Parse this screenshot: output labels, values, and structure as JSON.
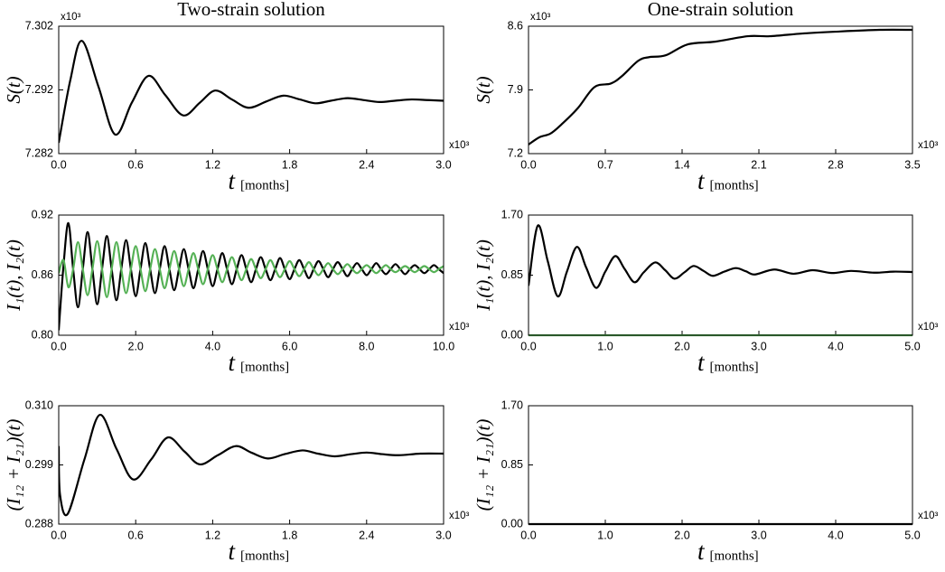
{
  "chart_data": [
    {
      "type": "line",
      "title": "Two-strain solution",
      "ylabel": "S(t)",
      "xlabel": "t",
      "xlabel_unit": "[months]",
      "y_multiplier": "x10³",
      "x_multiplier": "x10³",
      "x": [
        0,
        0.09,
        0.18,
        0.31,
        0.44,
        0.57,
        0.7,
        0.83,
        0.97,
        1.1,
        1.22,
        1.35,
        1.48,
        1.62,
        1.75,
        1.88,
        2.0,
        2.12,
        2.25,
        2.38,
        2.5,
        2.62,
        2.75,
        2.88,
        3.0
      ],
      "series": [
        {
          "color": "#000000",
          "values": [
            7.2837,
            7.2935,
            7.2997,
            7.2925,
            7.285,
            7.29,
            7.2942,
            7.2912,
            7.288,
            7.29,
            7.2919,
            7.2905,
            7.2892,
            7.2902,
            7.2911,
            7.2905,
            7.2899,
            7.2903,
            7.2907,
            7.2904,
            7.2901,
            7.2903,
            7.2905,
            7.2904,
            7.2903
          ]
        }
      ],
      "xlim": [
        0,
        3
      ],
      "xticks": [
        {
          "value": 0,
          "label": "0.0"
        },
        0.6,
        1.2,
        1.8,
        2.4,
        {
          "value": 3,
          "label": "3.0"
        }
      ],
      "ylim": [
        7.282,
        7.302
      ],
      "yticks": [
        7.282,
        7.292,
        7.302
      ]
    },
    {
      "type": "line",
      "title": "One-strain solution",
      "ylabel": "S(t)",
      "xlabel": "t",
      "xlabel_unit": "[months]",
      "y_multiplier": "x10³",
      "x_multiplier": "x10³",
      "x": [
        0,
        0.1,
        0.2,
        0.3,
        0.45,
        0.6,
        0.75,
        0.85,
        1.0,
        1.1,
        1.25,
        1.45,
        1.7,
        2.0,
        2.2,
        2.5,
        2.8,
        3.2,
        3.5
      ],
      "series": [
        {
          "color": "#000000",
          "values": [
            7.3,
            7.38,
            7.42,
            7.52,
            7.7,
            7.93,
            7.97,
            8.05,
            8.22,
            8.26,
            8.28,
            8.4,
            8.43,
            8.49,
            8.49,
            8.52,
            8.54,
            8.56,
            8.56
          ]
        }
      ],
      "xlim": [
        0,
        3.5
      ],
      "xticks": [
        {
          "value": 0,
          "label": "0.0"
        },
        0.7,
        1.4,
        2.1,
        2.8,
        3.5
      ],
      "ylim": [
        7.2,
        8.6
      ],
      "yticks": [
        7.2,
        7.9,
        8.6
      ]
    },
    {
      "type": "line",
      "ylabel": "I₁(t), I₂(t)",
      "xlabel": "t",
      "xlabel_unit": "[months]",
      "x_multiplier": "x10³",
      "x": [
        0,
        0.125,
        0.25,
        0.375,
        0.5,
        0.625,
        0.75,
        0.875,
        1.0,
        1.125,
        1.25,
        1.375,
        1.5,
        1.625,
        1.75,
        1.875,
        2.0,
        2.125,
        2.25,
        2.375,
        2.5,
        2.625,
        2.75,
        2.875,
        3.0,
        3.125,
        3.25,
        3.375,
        3.5,
        3.625,
        3.75,
        3.875,
        4.0,
        4.125,
        4.25,
        4.375,
        4.5,
        4.625,
        4.75,
        4.875,
        5.0,
        5.125,
        5.25,
        5.375,
        5.5,
        5.625,
        5.75,
        5.875,
        6.0,
        6.125,
        6.25,
        6.375,
        6.5,
        6.625,
        6.75,
        6.875,
        7.0,
        7.125,
        7.25,
        7.375,
        7.5,
        7.625,
        7.75,
        7.875,
        8.0,
        8.125,
        8.25,
        8.375,
        8.5,
        8.625,
        8.75,
        8.875,
        9.0,
        9.125,
        9.25,
        9.375,
        9.5,
        9.625,
        9.75,
        9.875,
        10.0
      ],
      "series": [
        {
          "color": "#000000",
          "values": [
            0.805,
            0.87,
            0.912,
            0.866,
            0.828,
            0.866,
            0.903,
            0.866,
            0.831,
            0.866,
            0.899,
            0.866,
            0.835,
            0.866,
            0.895,
            0.866,
            0.839,
            0.866,
            0.892,
            0.866,
            0.842,
            0.866,
            0.889,
            0.866,
            0.845,
            0.866,
            0.886,
            0.866,
            0.847,
            0.866,
            0.884,
            0.866,
            0.849,
            0.866,
            0.882,
            0.866,
            0.851,
            0.866,
            0.88,
            0.866,
            0.853,
            0.866,
            0.878,
            0.866,
            0.855,
            0.866,
            0.877,
            0.866,
            0.856,
            0.866,
            0.875,
            0.866,
            0.857,
            0.866,
            0.874,
            0.866,
            0.858,
            0.866,
            0.873,
            0.866,
            0.859,
            0.866,
            0.872,
            0.866,
            0.86,
            0.866,
            0.872,
            0.866,
            0.861,
            0.866,
            0.871,
            0.866,
            0.861,
            0.866,
            0.87,
            0.866,
            0.862,
            0.866,
            0.87,
            0.866,
            0.862
          ]
        },
        {
          "color": "#55b155",
          "values": [
            0.862,
            0.875,
            0.848,
            0.866,
            0.893,
            0.866,
            0.84,
            0.866,
            0.894,
            0.866,
            0.838,
            0.866,
            0.893,
            0.866,
            0.842,
            0.866,
            0.889,
            0.866,
            0.844,
            0.866,
            0.886,
            0.866,
            0.847,
            0.866,
            0.884,
            0.866,
            0.849,
            0.866,
            0.882,
            0.866,
            0.851,
            0.866,
            0.88,
            0.866,
            0.853,
            0.866,
            0.878,
            0.866,
            0.855,
            0.866,
            0.876,
            0.866,
            0.857,
            0.866,
            0.875,
            0.866,
            0.858,
            0.866,
            0.874,
            0.866,
            0.859,
            0.866,
            0.873,
            0.866,
            0.86,
            0.866,
            0.872,
            0.866,
            0.861,
            0.866,
            0.871,
            0.866,
            0.862,
            0.866,
            0.87,
            0.866,
            0.862,
            0.866,
            0.87,
            0.866,
            0.863,
            0.866,
            0.869,
            0.866,
            0.863,
            0.866,
            0.869,
            0.866,
            0.863,
            0.866,
            0.869
          ]
        }
      ],
      "xlim": [
        0,
        10
      ],
      "xticks": [
        {
          "value": 0,
          "label": "0.0"
        },
        {
          "value": 2,
          "label": "2.0"
        },
        {
          "value": 4,
          "label": "4.0"
        },
        {
          "value": 6,
          "label": "6.0"
        },
        {
          "value": 8,
          "label": "8.0"
        },
        {
          "value": 10,
          "label": "10.0"
        }
      ],
      "ylim": [
        0.8,
        0.92
      ],
      "yticks": [
        {
          "value": 0.8,
          "label": "0.80"
        },
        0.86,
        0.92
      ]
    },
    {
      "type": "line",
      "ylabel": "I₁(t), I₂(t)",
      "xlabel": "t",
      "xlabel_unit": "[months]",
      "x_multiplier": "x10³",
      "x": [
        0,
        0.12,
        0.25,
        0.38,
        0.5,
        0.63,
        0.75,
        0.88,
        1.0,
        1.13,
        1.25,
        1.38,
        1.5,
        1.65,
        1.78,
        1.9,
        2.03,
        2.15,
        2.28,
        2.4,
        2.55,
        2.7,
        2.83,
        2.95,
        3.2,
        3.45,
        3.7,
        3.95,
        4.2,
        4.5,
        4.75,
        5.0
      ],
      "series": [
        {
          "color": "#000000",
          "values": [
            0.7,
            1.55,
            1.05,
            0.55,
            0.9,
            1.25,
            0.96,
            0.67,
            0.9,
            1.12,
            0.94,
            0.75,
            0.89,
            1.03,
            0.92,
            0.8,
            0.89,
            0.98,
            0.91,
            0.84,
            0.9,
            0.95,
            0.905,
            0.86,
            0.93,
            0.87,
            0.92,
            0.88,
            0.91,
            0.885,
            0.9,
            0.895
          ]
        },
        {
          "color": "#55b155",
          "values": [
            0,
            0,
            0,
            0,
            0,
            0,
            0,
            0,
            0,
            0,
            0,
            0,
            0,
            0,
            0,
            0,
            0,
            0,
            0,
            0,
            0,
            0,
            0,
            0,
            0,
            0,
            0,
            0,
            0,
            0,
            0,
            0
          ]
        }
      ],
      "xlim": [
        0,
        5
      ],
      "xticks": [
        {
          "value": 0,
          "label": "0.0"
        },
        {
          "value": 1,
          "label": "1.0"
        },
        {
          "value": 2,
          "label": "2.0"
        },
        {
          "value": 3,
          "label": "3.0"
        },
        {
          "value": 4,
          "label": "4.0"
        },
        {
          "value": 5,
          "label": "5.0"
        }
      ],
      "ylim": [
        0,
        1.7
      ],
      "yticks": [
        {
          "value": 0,
          "label": "0.00"
        },
        0.85,
        {
          "value": 1.7,
          "label": "1.70"
        }
      ]
    },
    {
      "type": "line",
      "ylabel": "(I₁₂ + I₂₁)(t)",
      "xlabel": "t",
      "xlabel_unit": "[months]",
      "x_multiplier": "x10³",
      "x": [
        0,
        0.01,
        0.07,
        0.2,
        0.32,
        0.45,
        0.58,
        0.72,
        0.85,
        0.98,
        1.1,
        1.24,
        1.38,
        1.5,
        1.63,
        1.76,
        1.9,
        2.02,
        2.15,
        2.28,
        2.4,
        2.52,
        2.65,
        2.82,
        3.0
      ],
      "series": [
        {
          "color": "#000000",
          "values": [
            0.3025,
            0.2935,
            0.2899,
            0.3,
            0.3083,
            0.302,
            0.2963,
            0.3,
            0.3041,
            0.3015,
            0.2991,
            0.3008,
            0.3025,
            0.3013,
            0.3002,
            0.301,
            0.3017,
            0.3011,
            0.3006,
            0.301,
            0.3013,
            0.301,
            0.3008,
            0.3011,
            0.3011
          ]
        }
      ],
      "xlim": [
        0,
        3
      ],
      "xticks": [
        {
          "value": 0,
          "label": "0.0"
        },
        0.6,
        1.2,
        1.8,
        2.4,
        {
          "value": 3,
          "label": "3.0"
        }
      ],
      "ylim": [
        0.288,
        0.31
      ],
      "yticks": [
        0.288,
        0.299,
        {
          "value": 0.31,
          "label": "0.310"
        }
      ]
    },
    {
      "type": "line",
      "ylabel": "(I₁₂ + I₂₁)(t)",
      "xlabel": "t",
      "xlabel_unit": "[months]",
      "x_multiplier": "x10³",
      "x": [
        0,
        5
      ],
      "series": [
        {
          "color": "#000000",
          "values": [
            0,
            0
          ]
        }
      ],
      "xlim": [
        0,
        5
      ],
      "xticks": [
        {
          "value": 0,
          "label": "0.0"
        },
        {
          "value": 1,
          "label": "1.0"
        },
        {
          "value": 2,
          "label": "2.0"
        },
        {
          "value": 3,
          "label": "3.0"
        },
        {
          "value": 4,
          "label": "4.0"
        },
        {
          "value": 5,
          "label": "5.0"
        }
      ],
      "ylim": [
        0,
        1.7
      ],
      "yticks": [
        {
          "value": 0,
          "label": "0.00"
        },
        0.85,
        {
          "value": 1.7,
          "label": "1.70"
        }
      ]
    }
  ]
}
